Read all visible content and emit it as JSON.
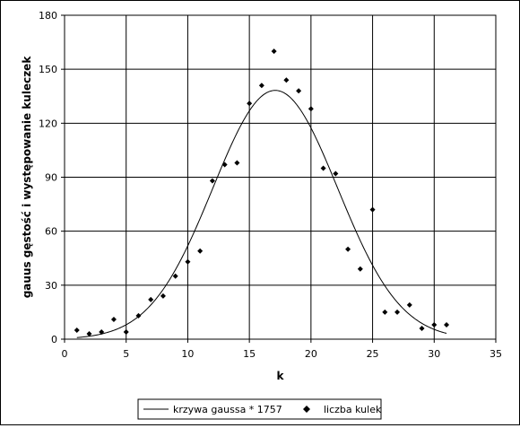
{
  "chart_data": {
    "type": "scatter",
    "title": "",
    "xlabel": "k",
    "ylabel": "gauus gęstość i występowanie kuleczek",
    "xlim": [
      0,
      35
    ],
    "ylim": [
      0,
      180
    ],
    "x_ticks": [
      "0",
      "5",
      "10",
      "15",
      "20",
      "25",
      "30",
      "35"
    ],
    "y_ticks": [
      "0",
      "30",
      "60",
      "90",
      "120",
      "150",
      "180"
    ],
    "grid": true,
    "legend_position": "bottom",
    "series": [
      {
        "name": "krzywa gaussa * 1757",
        "kind": "line",
        "color": "#000000",
        "mean": 17.1,
        "sd": 5.07,
        "scale": 1757,
        "x_start": 1,
        "x_end": 31
      },
      {
        "name": "liczba kulek",
        "kind": "scatter",
        "marker": "diamond",
        "color": "#000000",
        "x": [
          1,
          2,
          3,
          4,
          5,
          6,
          7,
          8,
          9,
          10,
          11,
          12,
          13,
          14,
          15,
          16,
          17,
          18,
          19,
          20,
          21,
          22,
          23,
          24,
          25,
          26,
          27,
          28,
          29,
          30,
          31
        ],
        "y": [
          5,
          3,
          4,
          11,
          4,
          13,
          22,
          24,
          35,
          43,
          49,
          88,
          97,
          98,
          131,
          141,
          160,
          144,
          138,
          128,
          95,
          92,
          50,
          39,
          72,
          15,
          15,
          19,
          6,
          8,
          8
        ]
      }
    ]
  }
}
